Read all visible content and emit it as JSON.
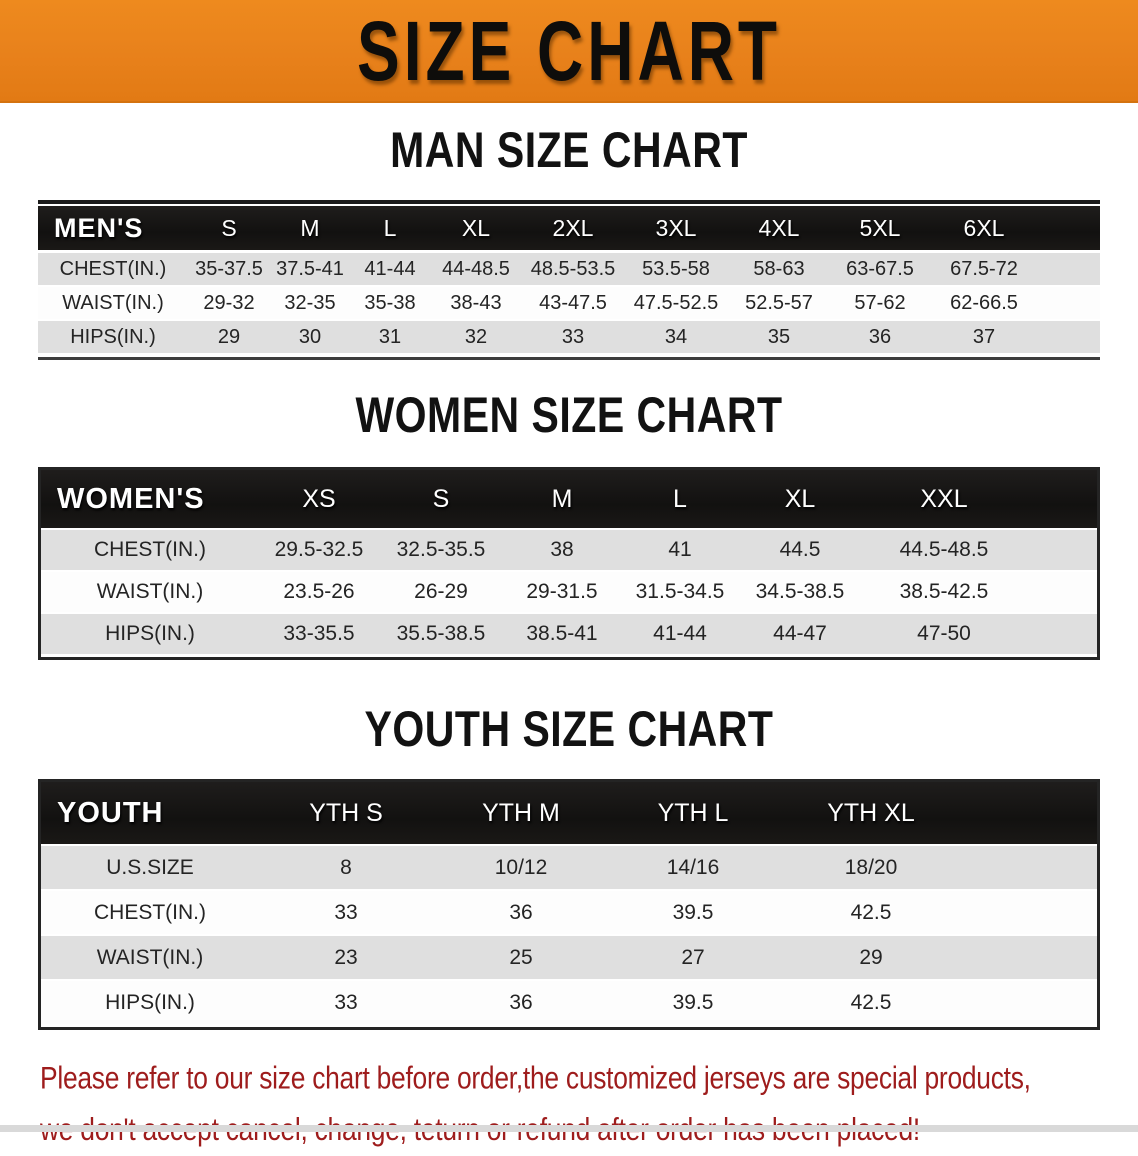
{
  "banner": {
    "title": "SIZE CHART"
  },
  "colors": {
    "banner_orange": "#e8811b",
    "table_header_black": "#151312",
    "row_gray": "#dfdfdf",
    "note_red": "#9e1c1c"
  },
  "men": {
    "heading": "MAN SIZE CHART",
    "label": "MEN'S",
    "sizes": [
      "S",
      "M",
      "L",
      "XL",
      "2XL",
      "3XL",
      "4XL",
      "5XL",
      "6XL"
    ],
    "rows": [
      {
        "label": "CHEST(IN.)",
        "values": [
          "35-37.5",
          "37.5-41",
          "41-44",
          "44-48.5",
          "48.5-53.5",
          "53.5-58",
          "58-63",
          "63-67.5",
          "67.5-72"
        ]
      },
      {
        "label": "WAIST(IN.)",
        "values": [
          "29-32",
          "32-35",
          "35-38",
          "38-43",
          "43-47.5",
          "47.5-52.5",
          "52.5-57",
          "57-62",
          "62-66.5"
        ]
      },
      {
        "label": "HIPS(IN.)",
        "values": [
          "29",
          "30",
          "31",
          "32",
          "33",
          "34",
          "35",
          "36",
          "37"
        ]
      }
    ]
  },
  "women": {
    "heading": "WOMEN SIZE CHART",
    "label": "WOMEN'S",
    "sizes": [
      "XS",
      "S",
      "M",
      "L",
      "XL",
      "XXL"
    ],
    "rows": [
      {
        "label": "CHEST(IN.)",
        "values": [
          "29.5-32.5",
          "32.5-35.5",
          "38",
          "41",
          "44.5",
          "44.5-48.5"
        ]
      },
      {
        "label": "WAIST(IN.)",
        "values": [
          "23.5-26",
          "26-29",
          "29-31.5",
          "31.5-34.5",
          "34.5-38.5",
          "38.5-42.5"
        ]
      },
      {
        "label": "HIPS(IN.)",
        "values": [
          "33-35.5",
          "35.5-38.5",
          "38.5-41",
          "41-44",
          "44-47",
          "47-50"
        ]
      }
    ]
  },
  "youth": {
    "heading": "YOUTH SIZE CHART",
    "label": "YOUTH",
    "sizes": [
      "YTH S",
      "YTH M",
      "YTH L",
      "YTH XL"
    ],
    "rows": [
      {
        "label": "U.S.SIZE",
        "values": [
          "8",
          "10/12",
          "14/16",
          "18/20"
        ]
      },
      {
        "label": "CHEST(IN.)",
        "values": [
          "33",
          "36",
          "39.5",
          "42.5"
        ]
      },
      {
        "label": "WAIST(IN.)",
        "values": [
          "23",
          "25",
          "27",
          "29"
        ]
      },
      {
        "label": "HIPS(IN.)",
        "values": [
          "33",
          "36",
          "39.5",
          "42.5"
        ]
      }
    ]
  },
  "note": {
    "line1": "Please refer to our size chart before order,the customized jerseys are special products,",
    "line2": "we don't accept cancel, change, teturn or refund after order has been placed!"
  }
}
